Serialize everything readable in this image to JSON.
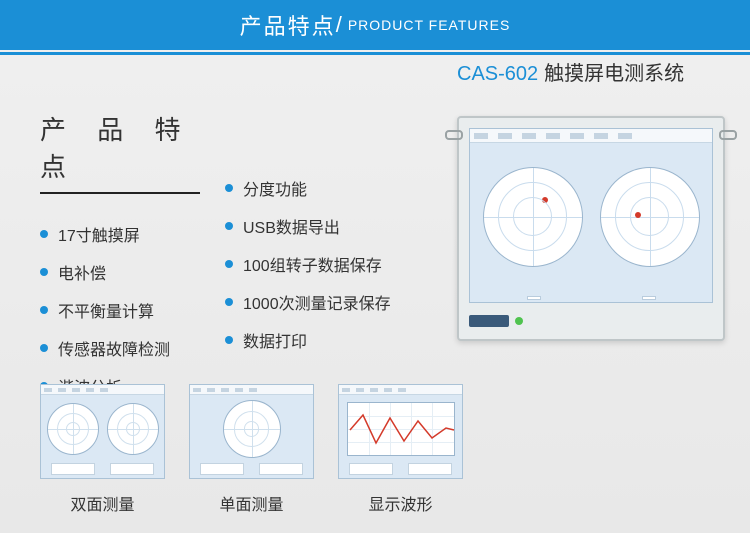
{
  "header": {
    "title_cn": "产品特点",
    "separator": "/",
    "title_en": "PRODUCT FEATURES"
  },
  "section_title": "产 品 特 点",
  "features_left": [
    "17寸触摸屏",
    "电补偿",
    "不平衡量计算",
    "传感器故障检测",
    "谐波分析"
  ],
  "features_right": [
    "分度功能",
    "USB数据导出",
    "100组转子数据保存",
    "1000次测量记录保存",
    "数据打印"
  ],
  "product": {
    "model": "CAS-602",
    "name": "触摸屏电测系统"
  },
  "thumbnails": [
    {
      "label": "双面测量"
    },
    {
      "label": "单面测量"
    },
    {
      "label": "显示波形"
    }
  ],
  "colors": {
    "primary": "#1b8fd6",
    "text": "#333333",
    "screen_bg": "#dbe8f4",
    "monitor_frame": "#e9edee"
  }
}
